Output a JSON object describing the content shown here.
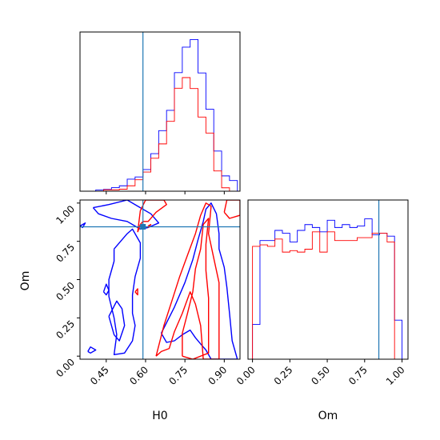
{
  "chart_data": {
    "type": "corner",
    "parameters": [
      "H0",
      "Om"
    ],
    "truth": {
      "H0": 0.59,
      "Om": 0.845
    },
    "colors": {
      "series_a": "#0000ff",
      "series_b": "#ff0000",
      "truth": "#1f77b4"
    },
    "grid": false,
    "panels": [
      {
        "id": "hist-H0",
        "type": "step-histogram",
        "xlim": [
          0.35,
          0.96
        ],
        "y_ticks_shown": false,
        "bin_edges": [
          0.35,
          0.38,
          0.41,
          0.44,
          0.47,
          0.5,
          0.53,
          0.56,
          0.59,
          0.62,
          0.65,
          0.68,
          0.71,
          0.74,
          0.77,
          0.8,
          0.83,
          0.86,
          0.89,
          0.92,
          0.95
        ],
        "series": [
          {
            "color_key": "series_a",
            "counts": [
              0.0,
              0.0,
              0.008,
              0.012,
              0.023,
              0.035,
              0.078,
              0.092,
              0.14,
              0.243,
              0.392,
              0.523,
              0.767,
              0.932,
              0.981,
              0.765,
              0.53,
              0.26,
              0.099,
              0.069
            ]
          },
          {
            "color_key": "series_b",
            "counts": [
              0.0,
              0.0,
              0.0,
              0.009,
              0.009,
              0.013,
              0.035,
              0.074,
              0.124,
              0.213,
              0.306,
              0.452,
              0.666,
              0.735,
              0.664,
              0.48,
              0.376,
              0.131,
              0.022,
              0.0
            ]
          }
        ]
      },
      {
        "id": "contour-H0-Om",
        "type": "contour",
        "xlim": [
          0.35,
          0.96
        ],
        "ylim": [
          -0.02,
          1.02
        ],
        "xticks": [
          "0.45",
          "0.60",
          "0.75",
          "0.90"
        ],
        "yticks": [
          "0.00",
          "0.25",
          "0.50",
          "0.75",
          "1.00"
        ],
        "xlabel": "H0",
        "ylabel": "Om",
        "series": [
          {
            "color_key": "series_a",
            "paths": [
              [
                [
                  0.35,
                  0.85
                ],
                [
                  0.36,
                  0.86
                ],
                [
                  0.37,
                  0.87
                ],
                [
                  0.36,
                  0.84
                ],
                [
                  0.35,
                  0.85
                ]
              ],
              [
                [
                  0.4,
                  0.97
                ],
                [
                  0.46,
                  0.99
                ],
                [
                  0.53,
                  1.02
                ],
                [
                  0.58,
                  0.97
                ],
                [
                  0.62,
                  0.93
                ],
                [
                  0.65,
                  0.87
                ],
                [
                  0.61,
                  0.84
                ],
                [
                  0.58,
                  0.83
                ],
                [
                  0.53,
                  0.88
                ],
                [
                  0.47,
                  0.9
                ],
                [
                  0.42,
                  0.93
                ],
                [
                  0.4,
                  0.97
                ]
              ],
              [
                [
                  0.48,
                  0.7
                ],
                [
                  0.53,
                  0.8
                ],
                [
                  0.55,
                  0.83
                ],
                [
                  0.58,
                  0.74
                ],
                [
                  0.58,
                  0.64
                ],
                [
                  0.56,
                  0.52
                ],
                [
                  0.55,
                  0.4
                ],
                [
                  0.55,
                  0.28
                ],
                [
                  0.56,
                  0.2
                ],
                [
                  0.55,
                  0.1
                ],
                [
                  0.52,
                  0.02
                ],
                [
                  0.48,
                  0.01
                ],
                [
                  0.49,
                  0.14
                ],
                [
                  0.48,
                  0.25
                ],
                [
                  0.46,
                  0.39
                ],
                [
                  0.46,
                  0.5
                ],
                [
                  0.48,
                  0.62
                ],
                [
                  0.48,
                  0.7
                ]
              ],
              [
                [
                  0.46,
                  0.26
                ],
                [
                  0.49,
                  0.36
                ],
                [
                  0.51,
                  0.31
                ],
                [
                  0.52,
                  0.2
                ],
                [
                  0.5,
                  0.1
                ],
                [
                  0.48,
                  0.14
                ],
                [
                  0.46,
                  0.26
                ]
              ],
              [
                [
                  0.38,
                  0.03
                ],
                [
                  0.39,
                  0.06
                ],
                [
                  0.41,
                  0.04
                ],
                [
                  0.39,
                  0.02
                ],
                [
                  0.38,
                  0.03
                ]
              ],
              [
                [
                  0.44,
                  0.42
                ],
                [
                  0.45,
                  0.47
                ],
                [
                  0.46,
                  0.43
                ],
                [
                  0.45,
                  0.4
                ],
                [
                  0.44,
                  0.42
                ]
              ],
              [
                [
                  0.66,
                  0.15
                ],
                [
                  0.71,
                  0.32
                ],
                [
                  0.75,
                  0.48
                ],
                [
                  0.78,
                  0.63
                ],
                [
                  0.8,
                  0.76
                ],
                [
                  0.82,
                  0.88
                ],
                [
                  0.83,
                  0.96
                ],
                [
                  0.85,
                  1.0
                ],
                [
                  0.87,
                  0.93
                ],
                [
                  0.88,
                  0.8
                ],
                [
                  0.88,
                  0.7
                ],
                [
                  0.9,
                  0.58
                ],
                [
                  0.91,
                  0.45
                ],
                [
                  0.92,
                  0.28
                ],
                [
                  0.93,
                  0.1
                ],
                [
                  0.95,
                  -0.02
                ],
                [
                  0.85,
                  -0.02
                ],
                [
                  0.83,
                  0.04
                ],
                [
                  0.81,
                  0.08
                ],
                [
                  0.79,
                  0.12
                ],
                [
                  0.77,
                  0.17
                ],
                [
                  0.74,
                  0.14
                ],
                [
                  0.71,
                  0.1
                ],
                [
                  0.68,
                  0.09
                ],
                [
                  0.66,
                  0.15
                ]
              ]
            ]
          },
          {
            "color_key": "series_b",
            "paths": [
              [
                [
                  0.57,
                  0.81
                ],
                [
                  0.58,
                  0.86
                ],
                [
                  0.59,
                  0.88
                ],
                [
                  0.61,
                  0.88
                ],
                [
                  0.64,
                  0.94
                ],
                [
                  0.68,
                  0.99
                ],
                [
                  0.67,
                  1.02
                ],
                [
                  0.6,
                  1.02
                ],
                [
                  0.58,
                  0.95
                ],
                [
                  0.57,
                  0.81
                ]
              ],
              [
                [
                  0.61,
                  0.85
                ],
                [
                  0.62,
                  0.86
                ],
                [
                  0.61,
                  0.84
                ],
                [
                  0.61,
                  0.85
                ]
              ],
              [
                [
                  0.56,
                  0.42
                ],
                [
                  0.57,
                  0.44
                ],
                [
                  0.57,
                  0.4
                ],
                [
                  0.56,
                  0.42
                ]
              ],
              [
                [
                  0.64,
                  0.0
                ],
                [
                  0.67,
                  0.2
                ],
                [
                  0.7,
                  0.36
                ],
                [
                  0.73,
                  0.52
                ],
                [
                  0.76,
                  0.66
                ],
                [
                  0.79,
                  0.8
                ],
                [
                  0.81,
                  0.92
                ],
                [
                  0.83,
                  1.0
                ],
                [
                  0.85,
                  0.98
                ],
                [
                  0.84,
                  0.8
                ],
                [
                  0.86,
                  0.64
                ],
                [
                  0.88,
                  0.48
                ],
                [
                  0.88,
                  0.3
                ],
                [
                  0.88,
                  0.1
                ],
                [
                  0.88,
                  -0.02
                ],
                [
                  0.82,
                  -0.02
                ],
                [
                  0.81,
                  0.2
                ],
                [
                  0.79,
                  0.34
                ],
                [
                  0.77,
                  0.42
                ],
                [
                  0.74,
                  0.28
                ],
                [
                  0.71,
                  0.16
                ],
                [
                  0.69,
                  0.05
                ],
                [
                  0.66,
                  0.03
                ],
                [
                  0.64,
                  0.0
                ]
              ],
              [
                [
                  0.74,
                  0.0
                ],
                [
                  0.74,
                  0.15
                ],
                [
                  0.76,
                  0.28
                ],
                [
                  0.78,
                  0.42
                ],
                [
                  0.79,
                  0.57
                ],
                [
                  0.81,
                  0.7
                ],
                [
                  0.82,
                  0.86
                ],
                [
                  0.84,
                  0.9
                ],
                [
                  0.83,
                  0.73
                ],
                [
                  0.83,
                  0.56
                ],
                [
                  0.84,
                  0.38
                ],
                [
                  0.84,
                  0.2
                ],
                [
                  0.84,
                  0.02
                ],
                [
                  0.78,
                  -0.02
                ],
                [
                  0.74,
                  0.0
                ]
              ],
              [
                [
                  0.9,
                  0.94
                ],
                [
                  0.91,
                  1.02
                ],
                [
                  0.96,
                  1.02
                ],
                [
                  0.96,
                  0.92
                ],
                [
                  0.92,
                  0.9
                ],
                [
                  0.9,
                  0.94
                ]
              ]
            ]
          }
        ]
      },
      {
        "id": "hist-Om",
        "type": "step-histogram",
        "xlim": [
          -0.03,
          1.04
        ],
        "ylim": [
          0,
          1.1
        ],
        "xticks": [
          "0.00",
          "0.25",
          "0.50",
          "0.75",
          "1.00"
        ],
        "xlabel": "Om",
        "y_ticks_shown": false,
        "bin_edges": [
          0.0,
          0.05,
          0.1,
          0.15,
          0.2,
          0.25,
          0.3,
          0.35,
          0.4,
          0.45,
          0.5,
          0.55,
          0.6,
          0.65,
          0.7,
          0.75,
          0.8,
          0.85,
          0.9,
          0.95,
          1.0
        ],
        "series": [
          {
            "color_key": "series_a",
            "counts": [
              0.24,
              0.82,
              0.82,
              0.89,
              0.87,
              0.81,
              0.89,
              0.93,
              0.91,
              0.88,
              0.96,
              0.91,
              0.93,
              0.91,
              0.92,
              0.97,
              0.86,
              0.87,
              0.85,
              0.27
            ]
          },
          {
            "color_key": "series_b",
            "counts": [
              0.78,
              0.79,
              0.78,
              0.83,
              0.74,
              0.75,
              0.74,
              0.76,
              0.88,
              0.74,
              0.88,
              0.82,
              0.82,
              0.82,
              0.84,
              0.84,
              0.87,
              0.87,
              0.81,
              0.0
            ]
          }
        ]
      }
    ]
  }
}
